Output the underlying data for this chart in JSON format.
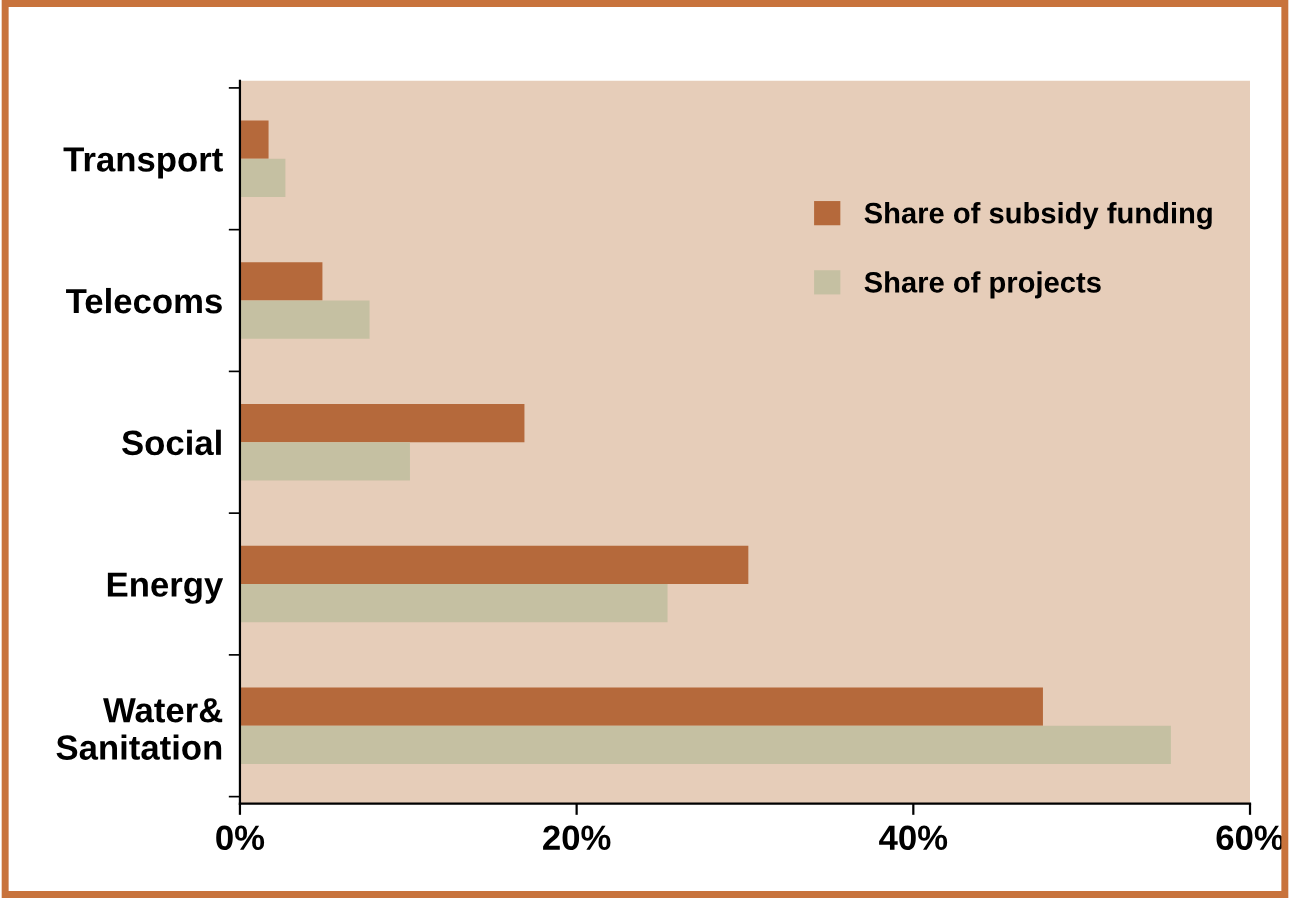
{
  "chart_data": {
    "type": "bar",
    "orientation": "horizontal",
    "categories": [
      "Transport",
      "Telecoms",
      "Social",
      "Energy",
      "Water&\nSanitation"
    ],
    "series": [
      {
        "name": "Share of subsidy funding",
        "color": "#b5693b",
        "values": [
          1.7,
          4.9,
          16.9,
          30.2,
          47.7
        ]
      },
      {
        "name": "Share of projects",
        "color": "#c5c0a2",
        "values": [
          2.7,
          7.7,
          10.1,
          25.4,
          55.3
        ]
      }
    ],
    "xlim": [
      0,
      60
    ],
    "xticks": [
      {
        "value": 0,
        "label": "0%"
      },
      {
        "value": 20,
        "label": "20%"
      },
      {
        "value": 40,
        "label": "40%"
      },
      {
        "value": 60,
        "label": "60%"
      }
    ],
    "legend": "top right",
    "grid": false
  }
}
